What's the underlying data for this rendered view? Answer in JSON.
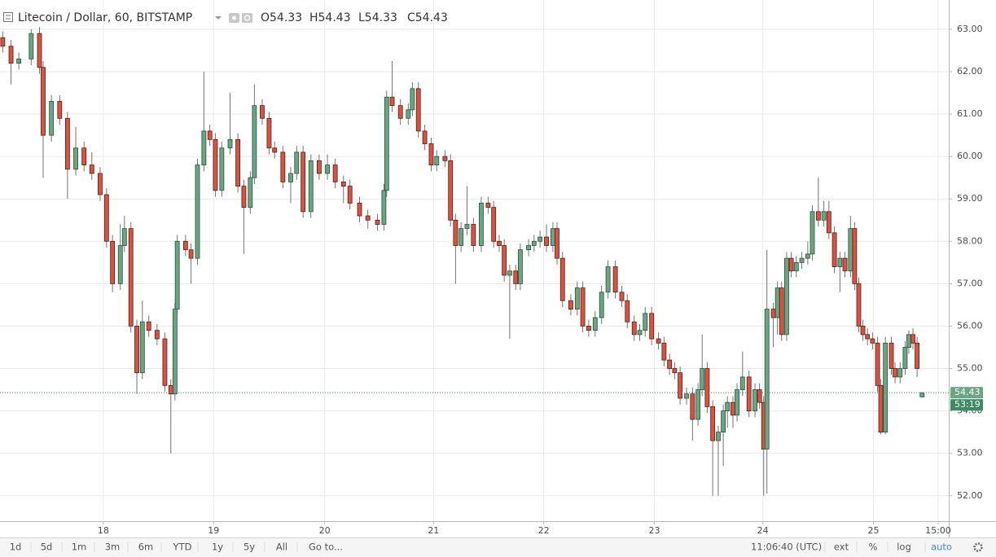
{
  "chart_data": {
    "type": "candlestick",
    "title": "Litecoin / Dollar, 60, BITSTAMP",
    "legend": [
      "O54.33",
      "H54.43",
      "L54.33",
      "C54.43"
    ],
    "up_color": "#6ba583",
    "down_color": "#d75442",
    "grid": true,
    "xlim": [
      -0.6,
      206
    ],
    "xticks": [
      {
        "value": 21.9,
        "label": "18"
      },
      {
        "value": 45.9,
        "label": "19"
      },
      {
        "value": 70.1,
        "label": "20"
      },
      {
        "value": 93.8,
        "label": "21"
      },
      {
        "value": 117.8,
        "label": "22"
      },
      {
        "value": 141.9,
        "label": "23"
      },
      {
        "value": 165.5,
        "label": "24"
      },
      {
        "value": 189.6,
        "label": "25"
      },
      {
        "value": 203.7,
        "label": "15:00"
      }
    ],
    "ylim": [
      51.4,
      63.69
    ],
    "yticks": [
      {
        "value": 52,
        "label": "52.00"
      },
      {
        "value": 53,
        "label": "53.00"
      },
      {
        "value": 54,
        "label": "54.00"
      },
      {
        "value": 55,
        "label": "55.00"
      },
      {
        "value": 56,
        "label": "56.00"
      },
      {
        "value": 57,
        "label": "57.00"
      },
      {
        "value": 58,
        "label": "58.00"
      },
      {
        "value": 59,
        "label": "59.00"
      },
      {
        "value": 60,
        "label": "60.00"
      },
      {
        "value": 61,
        "label": "61.00"
      },
      {
        "value": 62,
        "label": "62.00"
      },
      {
        "value": 63,
        "label": "63.00"
      }
    ],
    "last_price": 54.43,
    "countdown": "53:19",
    "x": [
      0,
      1.8,
      3.5,
      6.2,
      8.0,
      8.8,
      10.6,
      12.4,
      14.1,
      15.9,
      17.7,
      19.4,
      21.2,
      22.6,
      23.9,
      25.6,
      26.5,
      27.9,
      29.2,
      30.4,
      31.8,
      33.6,
      35.3,
      36.6,
      37.5,
      38.0,
      39.8,
      41.0,
      42.4,
      43.8,
      45.1,
      46.3,
      47.7,
      49.5,
      51.2,
      52.5,
      53.9,
      54.8,
      56.5,
      58.0,
      59.2,
      61.0,
      62.7,
      64.0,
      65.4,
      67.1,
      68.9,
      70.7,
      72.4,
      74.2,
      75.6,
      77.7,
      79.5,
      81.6,
      83.0,
      83.6,
      84.8,
      86.6,
      88.3,
      89.2,
      90.5,
      91.9,
      93.3,
      94.5,
      96.3,
      97.5,
      98.6,
      99.8,
      101.1,
      102.5,
      104.2,
      105.7,
      106.9,
      108.1,
      109.2,
      110.4,
      111.7,
      112.7,
      114.5,
      115.7,
      117.0,
      118.4,
      119.8,
      120.7,
      121.9,
      123.7,
      125.1,
      126.3,
      127.6,
      129.0,
      130.4,
      131.8,
      133.4,
      134.8,
      136.0,
      137.5,
      138.7,
      139.9,
      141.3,
      142.8,
      144.0,
      145.2,
      146.3,
      147.5,
      148.9,
      150.2,
      151.4,
      152.3,
      153.4,
      154.6,
      155.8,
      156.9,
      157.8,
      159.0,
      159.9,
      161.1,
      162.5,
      163.8,
      164.8,
      165.7,
      166.4,
      167.8,
      168.7,
      169.6,
      170.7,
      171.7,
      172.8,
      174.0,
      175.3,
      176.3,
      177.6,
      178.8,
      179.9,
      181.1,
      182.3,
      183.4,
      184.6,
      185.5,
      186.4,
      187.3,
      188.3,
      189.4,
      190.5,
      191.2,
      192.2,
      193.5,
      194.3,
      195.4,
      196.5,
      197.3,
      198.2,
      199.1,
      200.2
    ],
    "ohlc": [
      [
        62.8,
        62.95,
        62.45,
        62.6
      ],
      [
        62.6,
        62.75,
        61.7,
        62.2
      ],
      [
        62.2,
        62.45,
        62.05,
        62.3
      ],
      [
        62.3,
        63.0,
        62.15,
        62.9
      ],
      [
        62.9,
        63.05,
        61.95,
        62.1
      ],
      [
        62.1,
        62.25,
        59.5,
        60.5
      ],
      [
        60.5,
        61.45,
        60.35,
        61.3
      ],
      [
        61.3,
        61.45,
        60.75,
        60.9
      ],
      [
        60.9,
        61.05,
        59.0,
        59.7
      ],
      [
        59.7,
        60.7,
        59.55,
        60.2
      ],
      [
        60.2,
        60.35,
        59.65,
        59.8
      ],
      [
        59.8,
        60.1,
        59.45,
        59.6
      ],
      [
        59.6,
        59.75,
        58.95,
        59.1
      ],
      [
        59.1,
        59.25,
        57.85,
        58.0
      ],
      [
        58.0,
        58.15,
        56.8,
        57.0
      ],
      [
        57.0,
        58.4,
        56.85,
        57.9
      ],
      [
        57.9,
        58.6,
        57.75,
        58.3
      ],
      [
        58.3,
        58.45,
        55.85,
        56.0
      ],
      [
        56.0,
        56.15,
        54.4,
        54.9
      ],
      [
        54.9,
        56.6,
        54.75,
        56.1
      ],
      [
        56.1,
        56.25,
        55.75,
        55.9
      ],
      [
        55.9,
        56.05,
        55.55,
        55.7
      ],
      [
        55.7,
        55.85,
        54.45,
        54.6
      ],
      [
        54.6,
        54.75,
        53.0,
        54.4
      ],
      [
        54.4,
        56.55,
        54.25,
        56.4
      ],
      [
        56.4,
        58.15,
        56.25,
        58.0
      ],
      [
        58.0,
        58.15,
        57.65,
        57.8
      ],
      [
        57.8,
        57.95,
        57.0,
        57.6
      ],
      [
        57.6,
        59.95,
        57.45,
        59.8
      ],
      [
        59.8,
        62.0,
        59.65,
        60.6
      ],
      [
        60.6,
        60.75,
        60.25,
        60.4
      ],
      [
        60.4,
        60.55,
        59.05,
        59.2
      ],
      [
        59.2,
        60.35,
        59.05,
        60.2
      ],
      [
        60.2,
        61.5,
        60.05,
        60.4
      ],
      [
        60.4,
        60.55,
        59.15,
        59.3
      ],
      [
        59.3,
        59.45,
        57.7,
        58.8
      ],
      [
        58.8,
        59.65,
        58.65,
        59.5
      ],
      [
        59.5,
        61.7,
        59.35,
        61.2
      ],
      [
        61.2,
        61.35,
        60.75,
        60.9
      ],
      [
        60.9,
        61.05,
        60.05,
        60.2
      ],
      [
        60.2,
        60.35,
        59.95,
        60.1
      ],
      [
        60.1,
        60.25,
        59.25,
        59.4
      ],
      [
        59.4,
        59.75,
        58.9,
        59.6
      ],
      [
        59.6,
        60.25,
        59.45,
        60.1
      ],
      [
        60.1,
        60.25,
        58.55,
        58.7
      ],
      [
        58.7,
        60.05,
        58.55,
        59.9
      ],
      [
        59.9,
        60.05,
        59.45,
        59.6
      ],
      [
        59.6,
        60.05,
        59.45,
        59.8
      ],
      [
        59.8,
        59.95,
        59.25,
        59.4
      ],
      [
        59.4,
        59.55,
        58.9,
        59.3
      ],
      [
        59.3,
        59.45,
        58.75,
        58.9
      ],
      [
        58.9,
        59.05,
        58.45,
        58.6
      ],
      [
        58.6,
        58.75,
        58.3,
        58.5
      ],
      [
        58.5,
        58.65,
        58.25,
        58.4
      ],
      [
        58.4,
        59.35,
        58.25,
        59.2
      ],
      [
        59.2,
        61.55,
        59.05,
        61.4
      ],
      [
        61.4,
        62.25,
        61.05,
        61.2
      ],
      [
        61.2,
        61.35,
        60.75,
        60.9
      ],
      [
        60.9,
        61.25,
        60.75,
        61.1
      ],
      [
        61.1,
        61.75,
        60.95,
        61.6
      ],
      [
        61.6,
        61.75,
        60.45,
        60.6
      ],
      [
        60.6,
        60.75,
        60.15,
        60.3
      ],
      [
        60.3,
        60.45,
        59.65,
        59.8
      ],
      [
        59.8,
        60.15,
        59.65,
        60.0
      ],
      [
        60.0,
        60.15,
        59.75,
        59.9
      ],
      [
        59.9,
        60.05,
        58.35,
        58.5
      ],
      [
        58.5,
        58.65,
        57.0,
        57.9
      ],
      [
        57.9,
        58.45,
        57.75,
        58.3
      ],
      [
        58.3,
        59.3,
        58.15,
        58.4
      ],
      [
        58.4,
        58.55,
        57.75,
        57.9
      ],
      [
        57.9,
        59.05,
        57.75,
        58.9
      ],
      [
        58.9,
        59.05,
        58.65,
        58.8
      ],
      [
        58.8,
        58.95,
        57.85,
        58.0
      ],
      [
        58.0,
        58.15,
        57.75,
        57.9
      ],
      [
        57.9,
        58.05,
        57.05,
        57.2
      ],
      [
        57.2,
        57.45,
        55.7,
        57.3
      ],
      [
        57.3,
        57.45,
        56.85,
        57.0
      ],
      [
        57.0,
        57.95,
        56.85,
        57.8
      ],
      [
        57.8,
        58.05,
        57.65,
        57.9
      ],
      [
        57.9,
        58.15,
        57.75,
        58.0
      ],
      [
        58.0,
        58.25,
        57.85,
        58.1
      ],
      [
        58.1,
        58.4,
        57.75,
        57.9
      ],
      [
        57.9,
        58.45,
        57.75,
        58.3
      ],
      [
        58.3,
        58.45,
        57.45,
        57.6
      ],
      [
        57.6,
        57.75,
        56.45,
        56.6
      ],
      [
        56.6,
        56.75,
        56.25,
        56.4
      ],
      [
        56.4,
        57.05,
        56.25,
        56.9
      ],
      [
        56.9,
        57.05,
        55.85,
        56.0
      ],
      [
        56.0,
        56.15,
        55.75,
        55.9
      ],
      [
        55.9,
        56.35,
        55.75,
        56.2
      ],
      [
        56.2,
        56.95,
        56.05,
        56.8
      ],
      [
        56.8,
        57.55,
        56.65,
        57.4
      ],
      [
        57.4,
        57.55,
        56.65,
        56.8
      ],
      [
        56.8,
        56.95,
        56.45,
        56.6
      ],
      [
        56.6,
        56.75,
        55.95,
        56.1
      ],
      [
        56.1,
        56.25,
        55.65,
        55.8
      ],
      [
        55.8,
        56.05,
        55.65,
        55.9
      ],
      [
        55.9,
        56.45,
        55.75,
        56.3
      ],
      [
        56.3,
        56.45,
        55.55,
        55.7
      ],
      [
        55.7,
        55.85,
        55.45,
        55.6
      ],
      [
        55.6,
        55.75,
        55.05,
        55.2
      ],
      [
        55.2,
        55.35,
        54.85,
        55.0
      ],
      [
        55.0,
        55.15,
        54.75,
        54.9
      ],
      [
        54.9,
        55.05,
        54.15,
        54.3
      ],
      [
        54.3,
        54.55,
        54.15,
        54.4
      ],
      [
        54.4,
        54.55,
        53.3,
        53.8
      ],
      [
        53.8,
        54.65,
        53.65,
        54.5
      ],
      [
        54.5,
        55.8,
        54.35,
        55.0
      ],
      [
        55.0,
        55.15,
        53.95,
        54.1
      ],
      [
        54.1,
        54.25,
        52.0,
        53.3
      ],
      [
        53.3,
        53.65,
        52.0,
        53.5
      ],
      [
        53.5,
        54.15,
        52.7,
        54.0
      ],
      [
        54.0,
        54.35,
        53.6,
        54.2
      ],
      [
        54.2,
        54.35,
        53.6,
        53.9
      ],
      [
        53.9,
        54.65,
        53.75,
        54.5
      ],
      [
        54.5,
        55.4,
        54.35,
        54.8
      ],
      [
        54.8,
        54.95,
        53.85,
        54.0
      ],
      [
        54.0,
        54.65,
        53.85,
        54.5
      ],
      [
        54.5,
        54.65,
        54.05,
        54.2
      ],
      [
        54.2,
        54.35,
        52.0,
        53.1
      ],
      [
        53.1,
        57.8,
        52.05,
        56.4
      ],
      [
        56.4,
        56.55,
        55.5,
        56.2
      ],
      [
        56.2,
        57.05,
        55.8,
        56.9
      ],
      [
        56.9,
        57.05,
        55.65,
        55.8
      ],
      [
        55.8,
        57.75,
        55.65,
        57.6
      ],
      [
        57.6,
        57.75,
        57.15,
        57.3
      ],
      [
        57.3,
        57.65,
        57.15,
        57.5
      ],
      [
        57.5,
        57.75,
        57.35,
        57.6
      ],
      [
        57.6,
        58.0,
        57.45,
        57.7
      ],
      [
        57.7,
        58.85,
        57.55,
        58.7
      ],
      [
        58.7,
        59.5,
        58.35,
        58.5
      ],
      [
        58.5,
        58.95,
        58.35,
        58.7
      ],
      [
        58.7,
        58.95,
        58.05,
        58.2
      ],
      [
        58.2,
        58.35,
        57.25,
        57.4
      ],
      [
        57.4,
        57.75,
        56.8,
        57.6
      ],
      [
        57.6,
        57.75,
        57.15,
        57.3
      ],
      [
        57.3,
        58.6,
        57.15,
        58.3
      ],
      [
        58.3,
        58.45,
        56.85,
        57.0
      ],
      [
        57.0,
        57.15,
        55.85,
        56.0
      ],
      [
        56.0,
        56.15,
        55.65,
        55.8
      ],
      [
        55.8,
        55.95,
        55.55,
        55.7
      ],
      [
        55.7,
        55.85,
        55.45,
        55.6
      ],
      [
        55.6,
        55.75,
        54.45,
        54.6
      ],
      [
        54.6,
        54.75,
        53.45,
        53.5
      ],
      [
        53.5,
        55.75,
        53.45,
        55.6
      ],
      [
        55.6,
        55.75,
        54.85,
        55.0
      ],
      [
        55.0,
        55.15,
        54.65,
        54.8
      ],
      [
        54.8,
        55.15,
        54.65,
        55.0
      ],
      [
        55.0,
        55.65,
        54.85,
        55.5
      ],
      [
        55.5,
        55.9,
        55.35,
        55.8
      ],
      [
        55.8,
        55.95,
        55.45,
        55.6
      ],
      [
        55.6,
        55.75,
        54.8,
        55.0
      ],
      [
        54.33,
        54.43,
        54.33,
        54.43
      ]
    ]
  },
  "toolbar": {
    "ranges": [
      "1d",
      "5d",
      "1m",
      "3m",
      "6m",
      "YTD",
      "1y",
      "5y",
      "All"
    ],
    "goto": "Go to...",
    "clock": "11:06:40 (UTC)",
    "options": [
      "ext",
      "%",
      "log",
      "auto"
    ]
  }
}
